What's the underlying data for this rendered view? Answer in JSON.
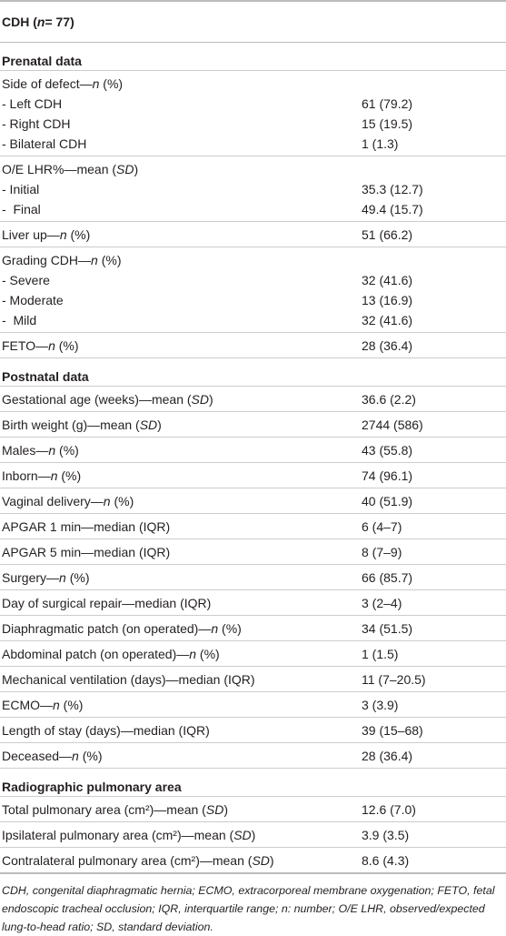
{
  "header": [
    "CDH (",
    "n",
    " = 77)"
  ],
  "sections": [
    {
      "title": "Prenatal data",
      "groups": [
        {
          "rows": [
            {
              "label": [
                "Side of defect—",
                "n",
                " (%)"
              ]
            },
            {
              "label": [
                "- Left CDH"
              ],
              "value": "61 (79.2)"
            },
            {
              "label": [
                "- Right CDH"
              ],
              "value": "15 (19.5)"
            },
            {
              "label": [
                "- Bilateral CDH"
              ],
              "value": "1 (1.3)"
            }
          ]
        },
        {
          "rows": [
            {
              "label": [
                "O/E LHR%—mean (",
                "SD",
                ")"
              ]
            },
            {
              "label": [
                "- Initial"
              ],
              "value": "35.3 (12.7)"
            },
            {
              "label": [
                "-  Final"
              ],
              "value": "49.4 (15.7)"
            }
          ]
        },
        {
          "rows": [
            {
              "label": [
                "Liver up—",
                "n",
                " (%)"
              ],
              "value": "51 (66.2)"
            }
          ]
        },
        {
          "rows": [
            {
              "label": [
                "Grading CDH—",
                "n",
                " (%)"
              ]
            },
            {
              "label": [
                "- Severe"
              ],
              "value": "32 (41.6)"
            },
            {
              "label": [
                "- Moderate"
              ],
              "value": "13 (16.9)"
            },
            {
              "label": [
                "-  Mild"
              ],
              "value": "32 (41.6)"
            }
          ]
        },
        {
          "rows": [
            {
              "label": [
                "FETO—",
                "n",
                " (%)"
              ],
              "value": "28 (36.4)"
            }
          ]
        }
      ]
    },
    {
      "title": "Postnatal data",
      "groups": [
        {
          "rows": [
            {
              "label": [
                "Gestational age (weeks)—mean (",
                "SD",
                ")"
              ],
              "value": "36.6 (2.2)"
            }
          ]
        },
        {
          "rows": [
            {
              "label": [
                "Birth weight (g)—mean (",
                "SD",
                ")"
              ],
              "value": "2744 (586)"
            }
          ]
        },
        {
          "rows": [
            {
              "label": [
                "Males—",
                "n",
                " (%)"
              ],
              "value": "43 (55.8)"
            }
          ]
        },
        {
          "rows": [
            {
              "label": [
                "Inborn—",
                "n",
                " (%)"
              ],
              "value": "74 (96.1)"
            }
          ]
        },
        {
          "rows": [
            {
              "label": [
                "Vaginal delivery—",
                "n",
                " (%)"
              ],
              "value": "40 (51.9)"
            }
          ]
        },
        {
          "rows": [
            {
              "label": [
                "APGAR 1 min—median (IQR)"
              ],
              "value": "6 (4–7)"
            }
          ]
        },
        {
          "rows": [
            {
              "label": [
                "APGAR 5 min—median (IQR)"
              ],
              "value": "8 (7–9)"
            }
          ]
        },
        {
          "rows": [
            {
              "label": [
                "Surgery—",
                "n",
                " (%)"
              ],
              "value": "66 (85.7)"
            }
          ]
        },
        {
          "rows": [
            {
              "label": [
                "Day of surgical repair—median (IQR)"
              ],
              "value": "3 (2–4)"
            }
          ]
        },
        {
          "rows": [
            {
              "label": [
                "Diaphragmatic patch (on operated)—",
                "n",
                " (%)"
              ],
              "value": "34 (51.5)"
            }
          ]
        },
        {
          "rows": [
            {
              "label": [
                "Abdominal patch (on operated)—",
                "n",
                " (%)"
              ],
              "value": "1 (1.5)"
            }
          ]
        },
        {
          "rows": [
            {
              "label": [
                "Mechanical ventilation (days)—median (IQR)"
              ],
              "value": "11 (7–20.5)"
            }
          ]
        },
        {
          "rows": [
            {
              "label": [
                "ECMO—",
                "n",
                " (%)"
              ],
              "value": "3 (3.9)"
            }
          ]
        },
        {
          "rows": [
            {
              "label": [
                "Length of stay (days)—median (IQR)"
              ],
              "value": "39 (15–68)"
            }
          ]
        },
        {
          "rows": [
            {
              "label": [
                "Deceased—",
                "n",
                " (%)"
              ],
              "value": "28 (36.4)"
            }
          ]
        }
      ]
    },
    {
      "title": "Radiographic pulmonary area",
      "groups": [
        {
          "rows": [
            {
              "label": [
                "Total pulmonary area (cm²)—mean (",
                "SD",
                ")"
              ],
              "value": "12.6 (7.0)"
            }
          ]
        },
        {
          "rows": [
            {
              "label": [
                "Ipsilateral pulmonary area (cm²)—mean (",
                "SD",
                ")"
              ],
              "value": "3.9 (3.5)"
            }
          ]
        },
        {
          "rows": [
            {
              "label": [
                "Contralateral pulmonary area (cm²)—mean (",
                "SD",
                ")"
              ],
              "value": "8.6 (4.3)"
            }
          ]
        }
      ]
    }
  ],
  "footnote": "CDH, congenital diaphragmatic hernia; ECMO, extracorporeal membrane oxygenation; FETO, fetal endoscopic tracheal occlusion; IQR, interquartile range; n: number; O/E LHR, observed/expected lung-to-head ratio; SD, standard deviation."
}
